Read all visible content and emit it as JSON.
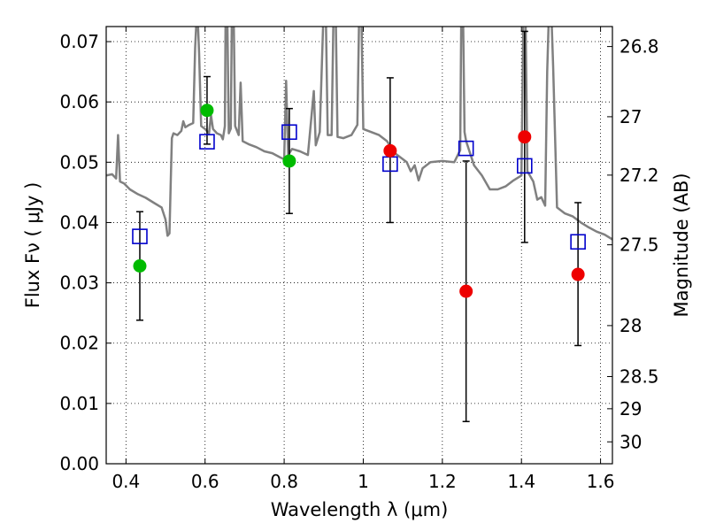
{
  "chart_data": {
    "type": "scatter",
    "title": "",
    "xlabel": "Wavelength  λ (μm)",
    "ylabel": "Flux  Fν  ( μJy )",
    "ylabel_right": "Magnitude (AB)",
    "xlim": [
      0.35,
      1.63
    ],
    "ylim": [
      0.0,
      0.0725
    ],
    "grid": true,
    "x_ticks": [
      0.4,
      0.6,
      0.8,
      1.0,
      1.2,
      1.4,
      1.6
    ],
    "x_tick_labels": [
      "0.4",
      "0.6",
      "0.8",
      "1",
      "1.2",
      "1.4",
      "1.6"
    ],
    "y_ticks": [
      0.0,
      0.01,
      0.02,
      0.03,
      0.04,
      0.05,
      0.06,
      0.07
    ],
    "y_tick_labels": [
      "0.00",
      "0.01",
      "0.02",
      "0.03",
      "0.04",
      "0.05",
      "0.06",
      "0.07"
    ],
    "right_ticks": [
      {
        "label": "26.8",
        "value": 26.8
      },
      {
        "label": "27",
        "value": 27.0
      },
      {
        "label": "27.2",
        "value": 27.2
      },
      {
        "label": "27.5",
        "value": 27.5
      },
      {
        "label": "28",
        "value": 28.0
      },
      {
        "label": "28.5",
        "value": 28.5
      },
      {
        "label": "29",
        "value": 29.0
      },
      {
        "label": "30",
        "value": 30.0
      }
    ],
    "colors": {
      "model_line": "#808080",
      "green": "#00bb00",
      "red": "#ee0000",
      "square": "#0000cc",
      "errorbar": "#000000"
    },
    "model_spectrum": [
      [
        0.35,
        0.0478
      ],
      [
        0.365,
        0.048
      ],
      [
        0.375,
        0.0473
      ],
      [
        0.38,
        0.0545
      ],
      [
        0.385,
        0.0468
      ],
      [
        0.395,
        0.0465
      ],
      [
        0.41,
        0.0455
      ],
      [
        0.43,
        0.0447
      ],
      [
        0.45,
        0.0441
      ],
      [
        0.47,
        0.0433
      ],
      [
        0.49,
        0.0425
      ],
      [
        0.5,
        0.0405
      ],
      [
        0.505,
        0.0378
      ],
      [
        0.51,
        0.0382
      ],
      [
        0.513,
        0.046
      ],
      [
        0.516,
        0.054
      ],
      [
        0.52,
        0.0548
      ],
      [
        0.53,
        0.0545
      ],
      [
        0.54,
        0.0552
      ],
      [
        0.545,
        0.0568
      ],
      [
        0.55,
        0.0558
      ],
      [
        0.56,
        0.0562
      ],
      [
        0.57,
        0.0565
      ],
      [
        0.575,
        0.069
      ],
      [
        0.58,
        0.076
      ],
      [
        0.585,
        0.068
      ],
      [
        0.59,
        0.056
      ],
      [
        0.6,
        0.0555
      ],
      [
        0.61,
        0.0548
      ],
      [
        0.615,
        0.0578
      ],
      [
        0.62,
        0.0555
      ],
      [
        0.63,
        0.0548
      ],
      [
        0.64,
        0.0545
      ],
      [
        0.645,
        0.0538
      ],
      [
        0.65,
        0.056
      ],
      [
        0.652,
        0.076
      ],
      [
        0.656,
        0.076
      ],
      [
        0.66,
        0.0548
      ],
      [
        0.665,
        0.0556
      ],
      [
        0.668,
        0.076
      ],
      [
        0.672,
        0.076
      ],
      [
        0.676,
        0.056
      ],
      [
        0.685,
        0.0545
      ],
      [
        0.69,
        0.0632
      ],
      [
        0.695,
        0.0535
      ],
      [
        0.71,
        0.053
      ],
      [
        0.73,
        0.0525
      ],
      [
        0.75,
        0.0518
      ],
      [
        0.77,
        0.0515
      ],
      [
        0.79,
        0.0508
      ],
      [
        0.8,
        0.0505
      ],
      [
        0.805,
        0.0635
      ],
      [
        0.81,
        0.0512
      ],
      [
        0.82,
        0.0522
      ],
      [
        0.84,
        0.0518
      ],
      [
        0.86,
        0.0512
      ],
      [
        0.875,
        0.0618
      ],
      [
        0.88,
        0.0528
      ],
      [
        0.89,
        0.055
      ],
      [
        0.9,
        0.076
      ],
      [
        0.905,
        0.076
      ],
      [
        0.91,
        0.0545
      ],
      [
        0.92,
        0.0545
      ],
      [
        0.925,
        0.076
      ],
      [
        0.93,
        0.076
      ],
      [
        0.935,
        0.0542
      ],
      [
        0.95,
        0.054
      ],
      [
        0.97,
        0.0545
      ],
      [
        0.985,
        0.0562
      ],
      [
        0.99,
        0.076
      ],
      [
        0.995,
        0.076
      ],
      [
        1.0,
        0.0555
      ],
      [
        1.02,
        0.055
      ],
      [
        1.04,
        0.0545
      ],
      [
        1.06,
        0.0535
      ],
      [
        1.08,
        0.0515
      ],
      [
        1.1,
        0.0505
      ],
      [
        1.11,
        0.05
      ],
      [
        1.12,
        0.0485
      ],
      [
        1.13,
        0.0495
      ],
      [
        1.14,
        0.047
      ],
      [
        1.15,
        0.049
      ],
      [
        1.17,
        0.05
      ],
      [
        1.2,
        0.0502
      ],
      [
        1.23,
        0.05
      ],
      [
        1.245,
        0.052
      ],
      [
        1.248,
        0.076
      ],
      [
        1.252,
        0.076
      ],
      [
        1.256,
        0.055
      ],
      [
        1.26,
        0.0535
      ],
      [
        1.28,
        0.0495
      ],
      [
        1.3,
        0.0478
      ],
      [
        1.32,
        0.0455
      ],
      [
        1.34,
        0.0455
      ],
      [
        1.36,
        0.046
      ],
      [
        1.38,
        0.047
      ],
      [
        1.4,
        0.0478
      ],
      [
        1.405,
        0.076
      ],
      [
        1.41,
        0.076
      ],
      [
        1.415,
        0.0485
      ],
      [
        1.43,
        0.0468
      ],
      [
        1.44,
        0.0438
      ],
      [
        1.45,
        0.0442
      ],
      [
        1.46,
        0.0428
      ],
      [
        1.465,
        0.065
      ],
      [
        1.47,
        0.076
      ],
      [
        1.475,
        0.076
      ],
      [
        1.48,
        0.066
      ],
      [
        1.49,
        0.0425
      ],
      [
        1.51,
        0.0415
      ],
      [
        1.53,
        0.041
      ],
      [
        1.55,
        0.04
      ],
      [
        1.57,
        0.0392
      ],
      [
        1.59,
        0.0385
      ],
      [
        1.61,
        0.038
      ],
      [
        1.63,
        0.0372
      ]
    ],
    "green_points": [
      {
        "x": 0.435,
        "y": 0.0328
      },
      {
        "x": 0.605,
        "y": 0.0586
      },
      {
        "x": 0.813,
        "y": 0.0502
      }
    ],
    "red_points": [
      {
        "x": 1.068,
        "y": 0.0519
      },
      {
        "x": 1.26,
        "y": 0.0286
      },
      {
        "x": 1.408,
        "y": 0.0542
      },
      {
        "x": 1.543,
        "y": 0.0314
      }
    ],
    "model_squares": [
      {
        "x": 0.435,
        "y": 0.0377
      },
      {
        "x": 0.605,
        "y": 0.0534
      },
      {
        "x": 0.813,
        "y": 0.055
      },
      {
        "x": 1.068,
        "y": 0.0497
      },
      {
        "x": 1.26,
        "y": 0.0523
      },
      {
        "x": 1.408,
        "y": 0.0494
      },
      {
        "x": 1.543,
        "y": 0.0368
      }
    ],
    "error_bars": [
      {
        "x": 0.435,
        "low": 0.0238,
        "high": 0.0418
      },
      {
        "x": 0.605,
        "low": 0.053,
        "high": 0.0642
      },
      {
        "x": 0.813,
        "low": 0.0415,
        "high": 0.0589
      },
      {
        "x": 1.068,
        "low": 0.04,
        "high": 0.064
      },
      {
        "x": 1.26,
        "low": 0.007,
        "high": 0.0502
      },
      {
        "x": 1.408,
        "low": 0.0367,
        "high": 0.0717
      },
      {
        "x": 1.543,
        "low": 0.0196,
        "high": 0.0433
      }
    ]
  }
}
